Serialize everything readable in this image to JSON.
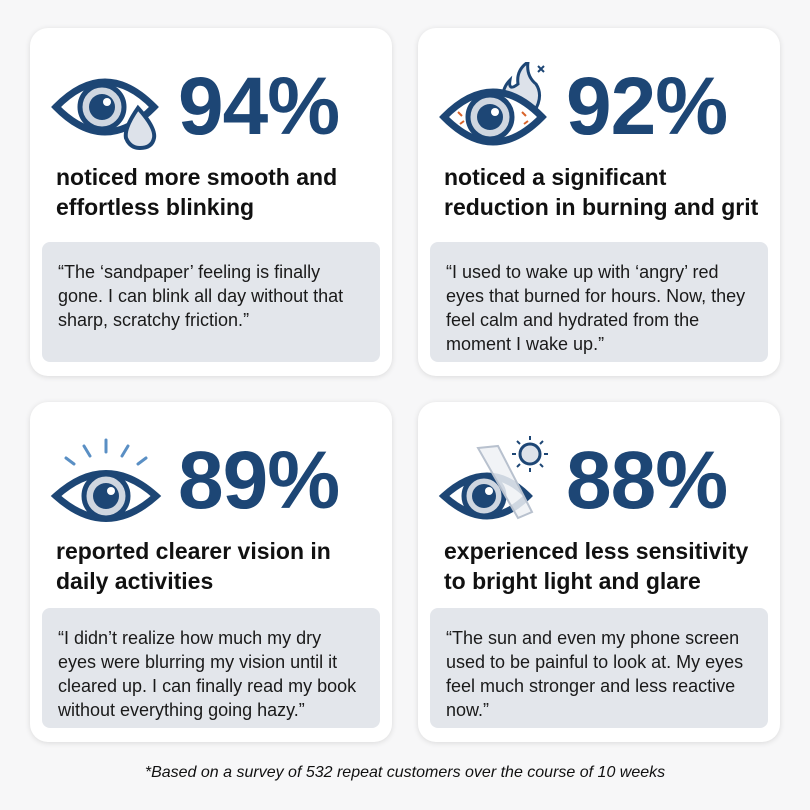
{
  "colors": {
    "accent": "#1d4675",
    "quote_bg": "#e3e6eb",
    "irritation": "#d9632a"
  },
  "cards": [
    {
      "icon": "eye-with-teardrop-icon",
      "percent": "94%",
      "headline": "noticed more smooth and effortless blinking",
      "quote": "“The ‘sandpaper’ feeling is finally gone. I can blink all day without that sharp, scratchy friction.”"
    },
    {
      "icon": "burning-eye-icon",
      "percent": "92%",
      "headline": "noticed a significant reduction in burning and grit",
      "quote": "“I used to wake up with ‘angry’ red eyes that burned for hours. Now, they feel calm and hydrated from the moment I wake up.”"
    },
    {
      "icon": "clear-vision-eye-icon",
      "percent": "89%",
      "headline": "reported clearer vision in daily activities",
      "quote": "“I didn’t realize how much my dry eyes were blurring my vision until it cleared up. I can finally read my book without everything going hazy.”"
    },
    {
      "icon": "eye-light-shield-icon",
      "percent": "88%",
      "headline": "experienced less sensitivity to bright light and glare",
      "quote": "“The sun and even my phone screen used to be painful to look at. My eyes feel much stronger and less reactive now.”"
    }
  ],
  "footnote": "*Based on a survey of 532 repeat customers over the course of 10 weeks"
}
